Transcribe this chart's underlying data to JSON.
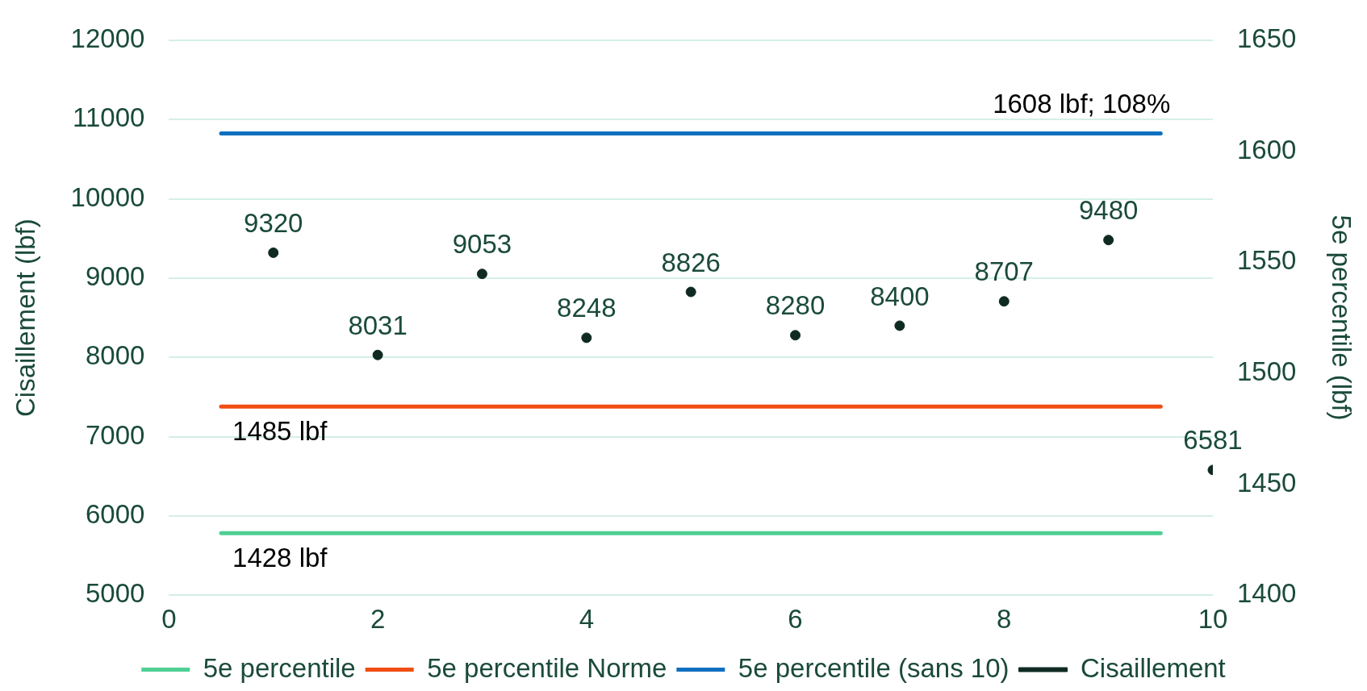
{
  "chart_data": {
    "type": "scatter",
    "ylabel": "Cisaillement (lbf)",
    "y2label": "5e percentile (lbf)",
    "xlim": [
      0,
      10
    ],
    "xticks": [
      0,
      2,
      4,
      6,
      8,
      10
    ],
    "ylim": [
      5000,
      12000
    ],
    "yticks": [
      5000,
      6000,
      7000,
      8000,
      9000,
      10000,
      11000,
      12000
    ],
    "y2lim": [
      1400,
      1650
    ],
    "y2ticks": [
      1400,
      1450,
      1500,
      1550,
      1600,
      1650
    ],
    "grid": "y",
    "legend": "bottom",
    "series": [
      {
        "name": "5e percentile",
        "type": "line",
        "axis": "y2",
        "color": "#4ecf94",
        "x": [
          0.5,
          9.5
        ],
        "values": [
          1428,
          1428
        ],
        "value_labels": [
          "1428 lbf",
          null
        ]
      },
      {
        "name": "5e percentile Norme",
        "type": "line",
        "axis": "y2",
        "color": "#f04e12",
        "x": [
          0.5,
          9.5
        ],
        "values": [
          1485,
          1485
        ],
        "value_labels": [
          "1485 lbf",
          null
        ]
      },
      {
        "name": "5e percentile (sans 10)",
        "type": "line",
        "axis": "y2",
        "color": "#1070c0",
        "x": [
          0.5,
          9.5
        ],
        "values": [
          1608,
          1608
        ],
        "value_labels": [
          null,
          "1608 lbf; 108%"
        ]
      },
      {
        "name": "Cisaillement",
        "type": "scatter",
        "marker": "circle",
        "color": "#0f2a22",
        "x": [
          1,
          2,
          3,
          4,
          5,
          6,
          7,
          8,
          9,
          10
        ],
        "values": [
          9320,
          8031,
          9053,
          8248,
          8826,
          8280,
          8400,
          8707,
          9480,
          6581
        ],
        "value_labels": [
          "9320",
          "8031",
          "9053",
          "8248",
          "8826",
          "8280",
          "8400",
          "8707",
          "9480",
          "6581"
        ]
      }
    ]
  }
}
